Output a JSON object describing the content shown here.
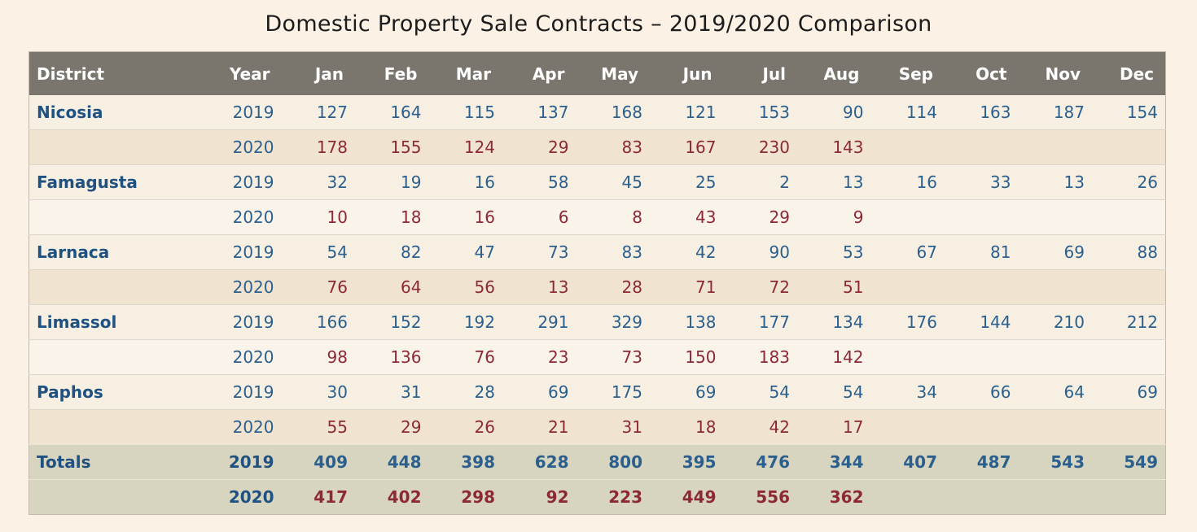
{
  "title": "Domestic Property Sale Contracts – 2019/2020 Comparison",
  "chart_data": {
    "type": "table",
    "title": "Domestic Property Sale Contracts – 2019/2020 Comparison",
    "columns": [
      "District",
      "Year",
      "Jan",
      "Feb",
      "Mar",
      "Apr",
      "May",
      "Jun",
      "Jul",
      "Aug",
      "Sep",
      "Oct",
      "Nov",
      "Dec"
    ],
    "years": [
      "2019",
      "2020"
    ],
    "districts": [
      {
        "name": "Nicosia",
        "values_2019": [
          127,
          164,
          115,
          137,
          168,
          121,
          153,
          90,
          114,
          163,
          187,
          154
        ],
        "values_2020": [
          178,
          155,
          124,
          29,
          83,
          167,
          230,
          143,
          null,
          null,
          null,
          null
        ],
        "shade_2020": "tan"
      },
      {
        "name": "Famagusta",
        "values_2019": [
          32,
          19,
          16,
          58,
          45,
          25,
          2,
          13,
          16,
          33,
          13,
          26
        ],
        "values_2020": [
          10,
          18,
          16,
          6,
          8,
          43,
          29,
          9,
          null,
          null,
          null,
          null
        ],
        "shade_2020": "light"
      },
      {
        "name": "Larnaca",
        "values_2019": [
          54,
          82,
          47,
          73,
          83,
          42,
          90,
          53,
          67,
          81,
          69,
          88
        ],
        "values_2020": [
          76,
          64,
          56,
          13,
          28,
          71,
          72,
          51,
          null,
          null,
          null,
          null
        ],
        "shade_2020": "tan"
      },
      {
        "name": "Limassol",
        "values_2019": [
          166,
          152,
          192,
          291,
          329,
          138,
          177,
          134,
          176,
          144,
          210,
          212
        ],
        "values_2020": [
          98,
          136,
          76,
          23,
          73,
          150,
          183,
          142,
          null,
          null,
          null,
          null
        ],
        "shade_2020": "light"
      },
      {
        "name": "Paphos",
        "values_2019": [
          30,
          31,
          28,
          69,
          175,
          69,
          54,
          54,
          34,
          66,
          64,
          69
        ],
        "values_2020": [
          55,
          29,
          26,
          21,
          31,
          18,
          42,
          17,
          null,
          null,
          null,
          null
        ],
        "shade_2020": "tan"
      }
    ],
    "totals": {
      "label": "Totals",
      "values_2019": [
        409,
        448,
        398,
        628,
        800,
        395,
        476,
        344,
        407,
        487,
        543,
        549
      ],
      "values_2020": [
        417,
        402,
        298,
        92,
        223,
        449,
        556,
        362,
        null,
        null,
        null,
        null
      ]
    }
  },
  "colors": {
    "page-bg": "#fbf2e5",
    "header-bg": "#7b766d",
    "row-cream": "#f7efe2",
    "row-tan": "#f0e4d1",
    "row-light": "#f9f3e9",
    "totals-bg": "#d7d4bf",
    "blue": "#2b5f8d",
    "district-blue": "#1f5181",
    "red": "#8d2936",
    "row-line": "#dbd7ce",
    "totals-line": "#e8e5d8",
    "table-border": "#c0b9ad"
  }
}
